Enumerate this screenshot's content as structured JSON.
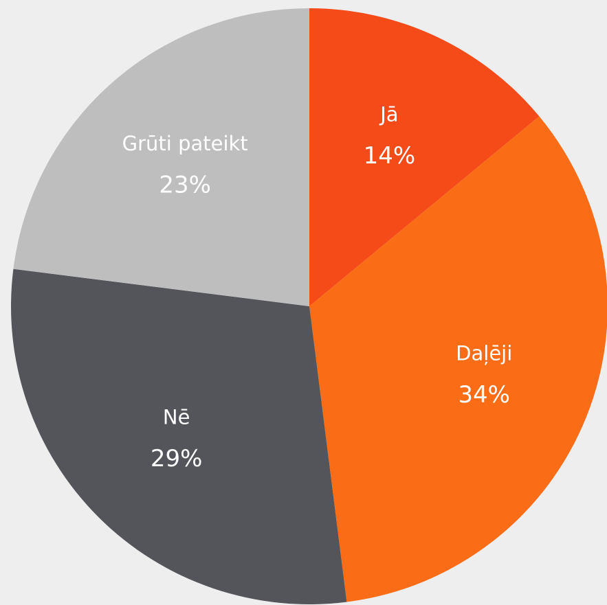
{
  "chart_data": {
    "type": "pie",
    "categories": [
      "Jā",
      "Daļēji",
      "Nē",
      "Grūti pateikt"
    ],
    "values": [
      14,
      34,
      29,
      23
    ],
    "value_labels": [
      "14%",
      "34%",
      "29%",
      "23%"
    ],
    "colors": [
      "#f44b19",
      "#fb6c16",
      "#53555a",
      "#bebebe"
    ]
  }
}
